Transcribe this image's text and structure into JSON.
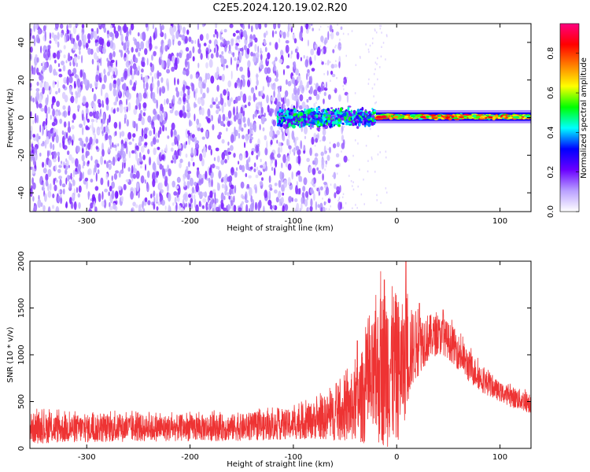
{
  "title": "C2E5.2024.120.19.02.R20",
  "chart_data": [
    {
      "type": "heatmap",
      "xlabel": "Height of straight line (km)",
      "ylabel": "Frequency (Hz)",
      "xlim": [
        -355,
        130
      ],
      "ylim": [
        -50,
        50
      ],
      "x_ticks": [
        -300,
        -200,
        -100,
        0,
        100
      ],
      "y_ticks": [
        -40,
        -20,
        0,
        20,
        40
      ],
      "colorbar": {
        "label": "Normalized spectral amplitude",
        "range": [
          0.0,
          0.95
        ],
        "ticks": [
          0.0,
          0.2,
          0.4,
          0.6,
          0.8
        ],
        "colors": [
          "#ffffff",
          "#b9a0ff",
          "#6a00ff",
          "#0000ff",
          "#00ffff",
          "#00ff00",
          "#ffff00",
          "#ff8000",
          "#ff0000",
          "#ff0080"
        ]
      },
      "features": [
        {
          "name": "broadband noise",
          "x_range": [
            -355,
            -75
          ],
          "freq_range": [
            -50,
            50
          ],
          "amplitude": 0.1
        },
        {
          "name": "signal line onset",
          "x_range": [
            -115,
            -20
          ],
          "freq_center": 0,
          "freq_halfwidth": 7,
          "amplitude": 0.3
        },
        {
          "name": "narrow signal line",
          "x_range": [
            -20,
            130
          ],
          "freq_center": 0.5,
          "freq_halfwidth": 2,
          "amplitude_max": 0.9
        }
      ]
    },
    {
      "type": "line",
      "xlabel": "Height of straight line (km)",
      "ylabel": "SNR (10 * v/v)",
      "xlim": [
        -355,
        130
      ],
      "ylim": [
        0,
        2000
      ],
      "x_ticks": [
        -300,
        -200,
        -100,
        0,
        100
      ],
      "y_ticks": [
        0,
        500,
        1000,
        1500,
        2000
      ],
      "series_color": "#ee3333",
      "envelope": {
        "x": [
          -355,
          -300,
          -250,
          -200,
          -150,
          -110,
          -80,
          -60,
          -40,
          -25,
          -15,
          -8,
          0,
          8,
          15,
          25,
          35,
          45,
          55,
          70,
          85,
          100,
          115,
          130
        ],
        "mean": [
          150,
          160,
          165,
          175,
          185,
          200,
          260,
          320,
          420,
          600,
          700,
          550,
          550,
          800,
          1000,
          1150,
          1220,
          1220,
          1120,
          900,
          750,
          620,
          530,
          470
        ],
        "low": [
          50,
          60,
          70,
          75,
          80,
          90,
          100,
          80,
          60,
          40,
          20,
          10,
          30,
          300,
          650,
          850,
          980,
          1000,
          900,
          700,
          580,
          500,
          420,
          370
        ],
        "high": [
          380,
          360,
          360,
          360,
          370,
          400,
          500,
          620,
          850,
          1300,
          1700,
          1800,
          1650,
          1500,
          1500,
          1450,
          1430,
          1400,
          1300,
          1050,
          850,
          700,
          650,
          600
        ]
      },
      "peaks": [
        {
          "x": -38,
          "y": 1150
        },
        {
          "x": -12,
          "y": 1800
        },
        {
          "x": 9,
          "y": 2000
        },
        {
          "x": 22,
          "y": 1550
        },
        {
          "x": 45,
          "y": 1480
        }
      ]
    }
  ]
}
